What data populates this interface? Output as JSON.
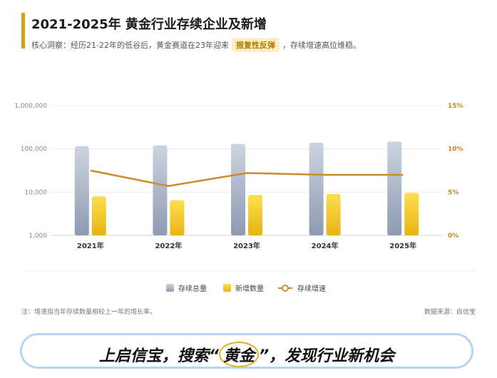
{
  "header": {
    "title": "2021-2025年 黄金行业存续企业及新增",
    "insight_prefix": "核心洞察：经历21-22年的低谷后，黄金赛道在23年迎来",
    "insight_highlight": "报复性反弹",
    "insight_suffix": "，存续增速高位维稳。"
  },
  "chart_data": {
    "type": "bar",
    "title": "",
    "categories": [
      "2021年",
      "2022年",
      "2023年",
      "2024年",
      "2025年"
    ],
    "series": [
      {
        "name": "存续总量",
        "type": "bar",
        "axis": "left",
        "color": "#a9b4c8",
        "values": [
          115000,
          121000,
          130000,
          139000,
          148000
        ]
      },
      {
        "name": "新增数量",
        "type": "bar",
        "axis": "left",
        "color": "#f2c418",
        "values": [
          8000,
          6500,
          8600,
          9100,
          9600
        ]
      },
      {
        "name": "存续增速",
        "type": "line",
        "axis": "right",
        "color": "#cd8a2f",
        "values": [
          7.5,
          5.7,
          7.2,
          7.0,
          7.0
        ]
      }
    ],
    "y_left": {
      "scale": "log",
      "ticks": [
        "1,000",
        "10,000",
        "100,000",
        "1,000,000"
      ],
      "range": [
        1000,
        1000000
      ]
    },
    "y_right": {
      "scale": "linear",
      "ticks": [
        "0%",
        "5%",
        "10%",
        "15%"
      ],
      "range": [
        0,
        15
      ]
    },
    "legend_placement": "bottom",
    "grid": true
  },
  "footer": {
    "note": "注：增速指当年存续数量相较上一年的增长率。",
    "source": "数据来源：启信宝"
  },
  "banner": {
    "prefix": "上启信宝，搜索“",
    "keyword": "黄金",
    "suffix": "”，发现行业新机会"
  }
}
